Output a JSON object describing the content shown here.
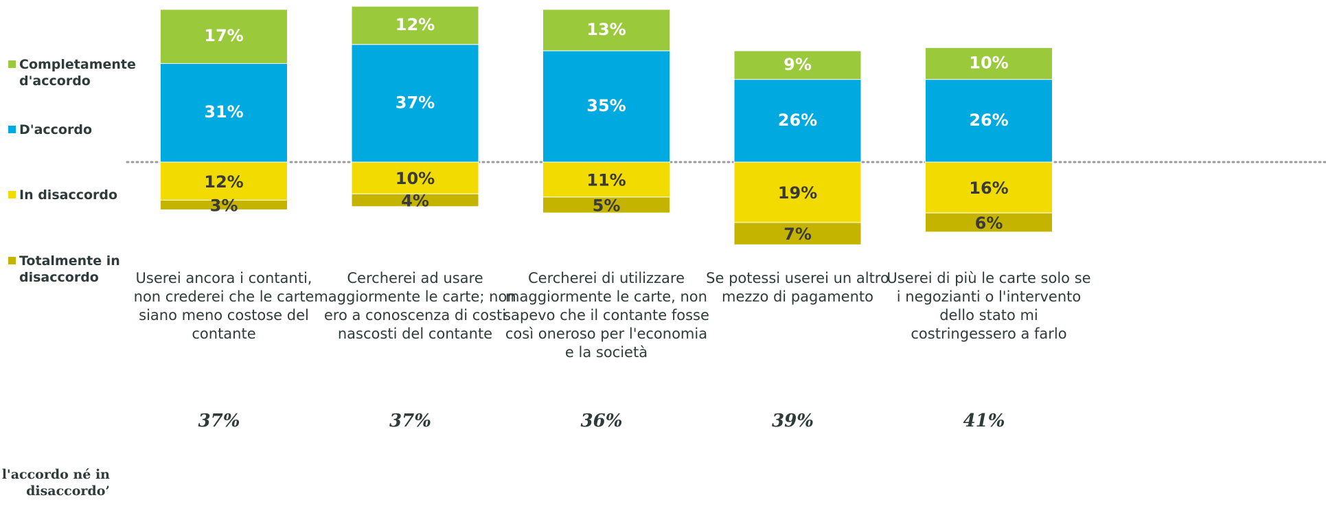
{
  "chart_data": {
    "type": "diverging_stacked_bar",
    "categories": [
      "Userei ancora i contanti, non crederei che le carte siano meno costose del contante",
      "Cercherei ad usare maggiormente le carte; non ero a conoscenza di costi nascosti del contante",
      "Cercherei di utilizzare maggiormente le carte, non sapevo che il contante fosse così oneroso per l'economia e la società",
      "Se potessi userei un altro mezzo di pagamento",
      "Userei di più le carte solo se i negozianti o l'intervento dello stato mi costringessero a farlo"
    ],
    "series": [
      {
        "name": "Completamente d'accordo",
        "color": "#9aca3c",
        "direction": "up",
        "values": [
          17,
          12,
          13,
          9,
          10
        ],
        "value_labels": [
          "17%",
          "12%",
          "13%",
          "9%",
          "10%"
        ]
      },
      {
        "name": "D'accordo",
        "color": "#00a9e0",
        "direction": "up",
        "values": [
          31,
          37,
          35,
          26,
          26
        ],
        "value_labels": [
          "31%",
          "37%",
          "35%",
          "26%",
          "26%"
        ]
      },
      {
        "name": "In disaccordo",
        "color": "#f2db00",
        "direction": "down",
        "values": [
          12,
          10,
          11,
          19,
          16
        ],
        "value_labels": [
          "12%",
          "10%",
          "11%",
          "19%",
          "16%"
        ]
      },
      {
        "name": "Totalmente in disaccordo",
        "color": "#c4b400",
        "direction": "down",
        "values": [
          3,
          4,
          5,
          7,
          6
        ],
        "value_labels": [
          "3%",
          "4%",
          "5%",
          "7%",
          "6%"
        ]
      }
    ],
    "neutral": {
      "label": "l'accordo né in disaccordo’",
      "values": [
        37,
        37,
        36,
        39,
        41
      ],
      "value_labels": [
        "37%",
        "37%",
        "36%",
        "39%",
        "41%"
      ]
    }
  }
}
